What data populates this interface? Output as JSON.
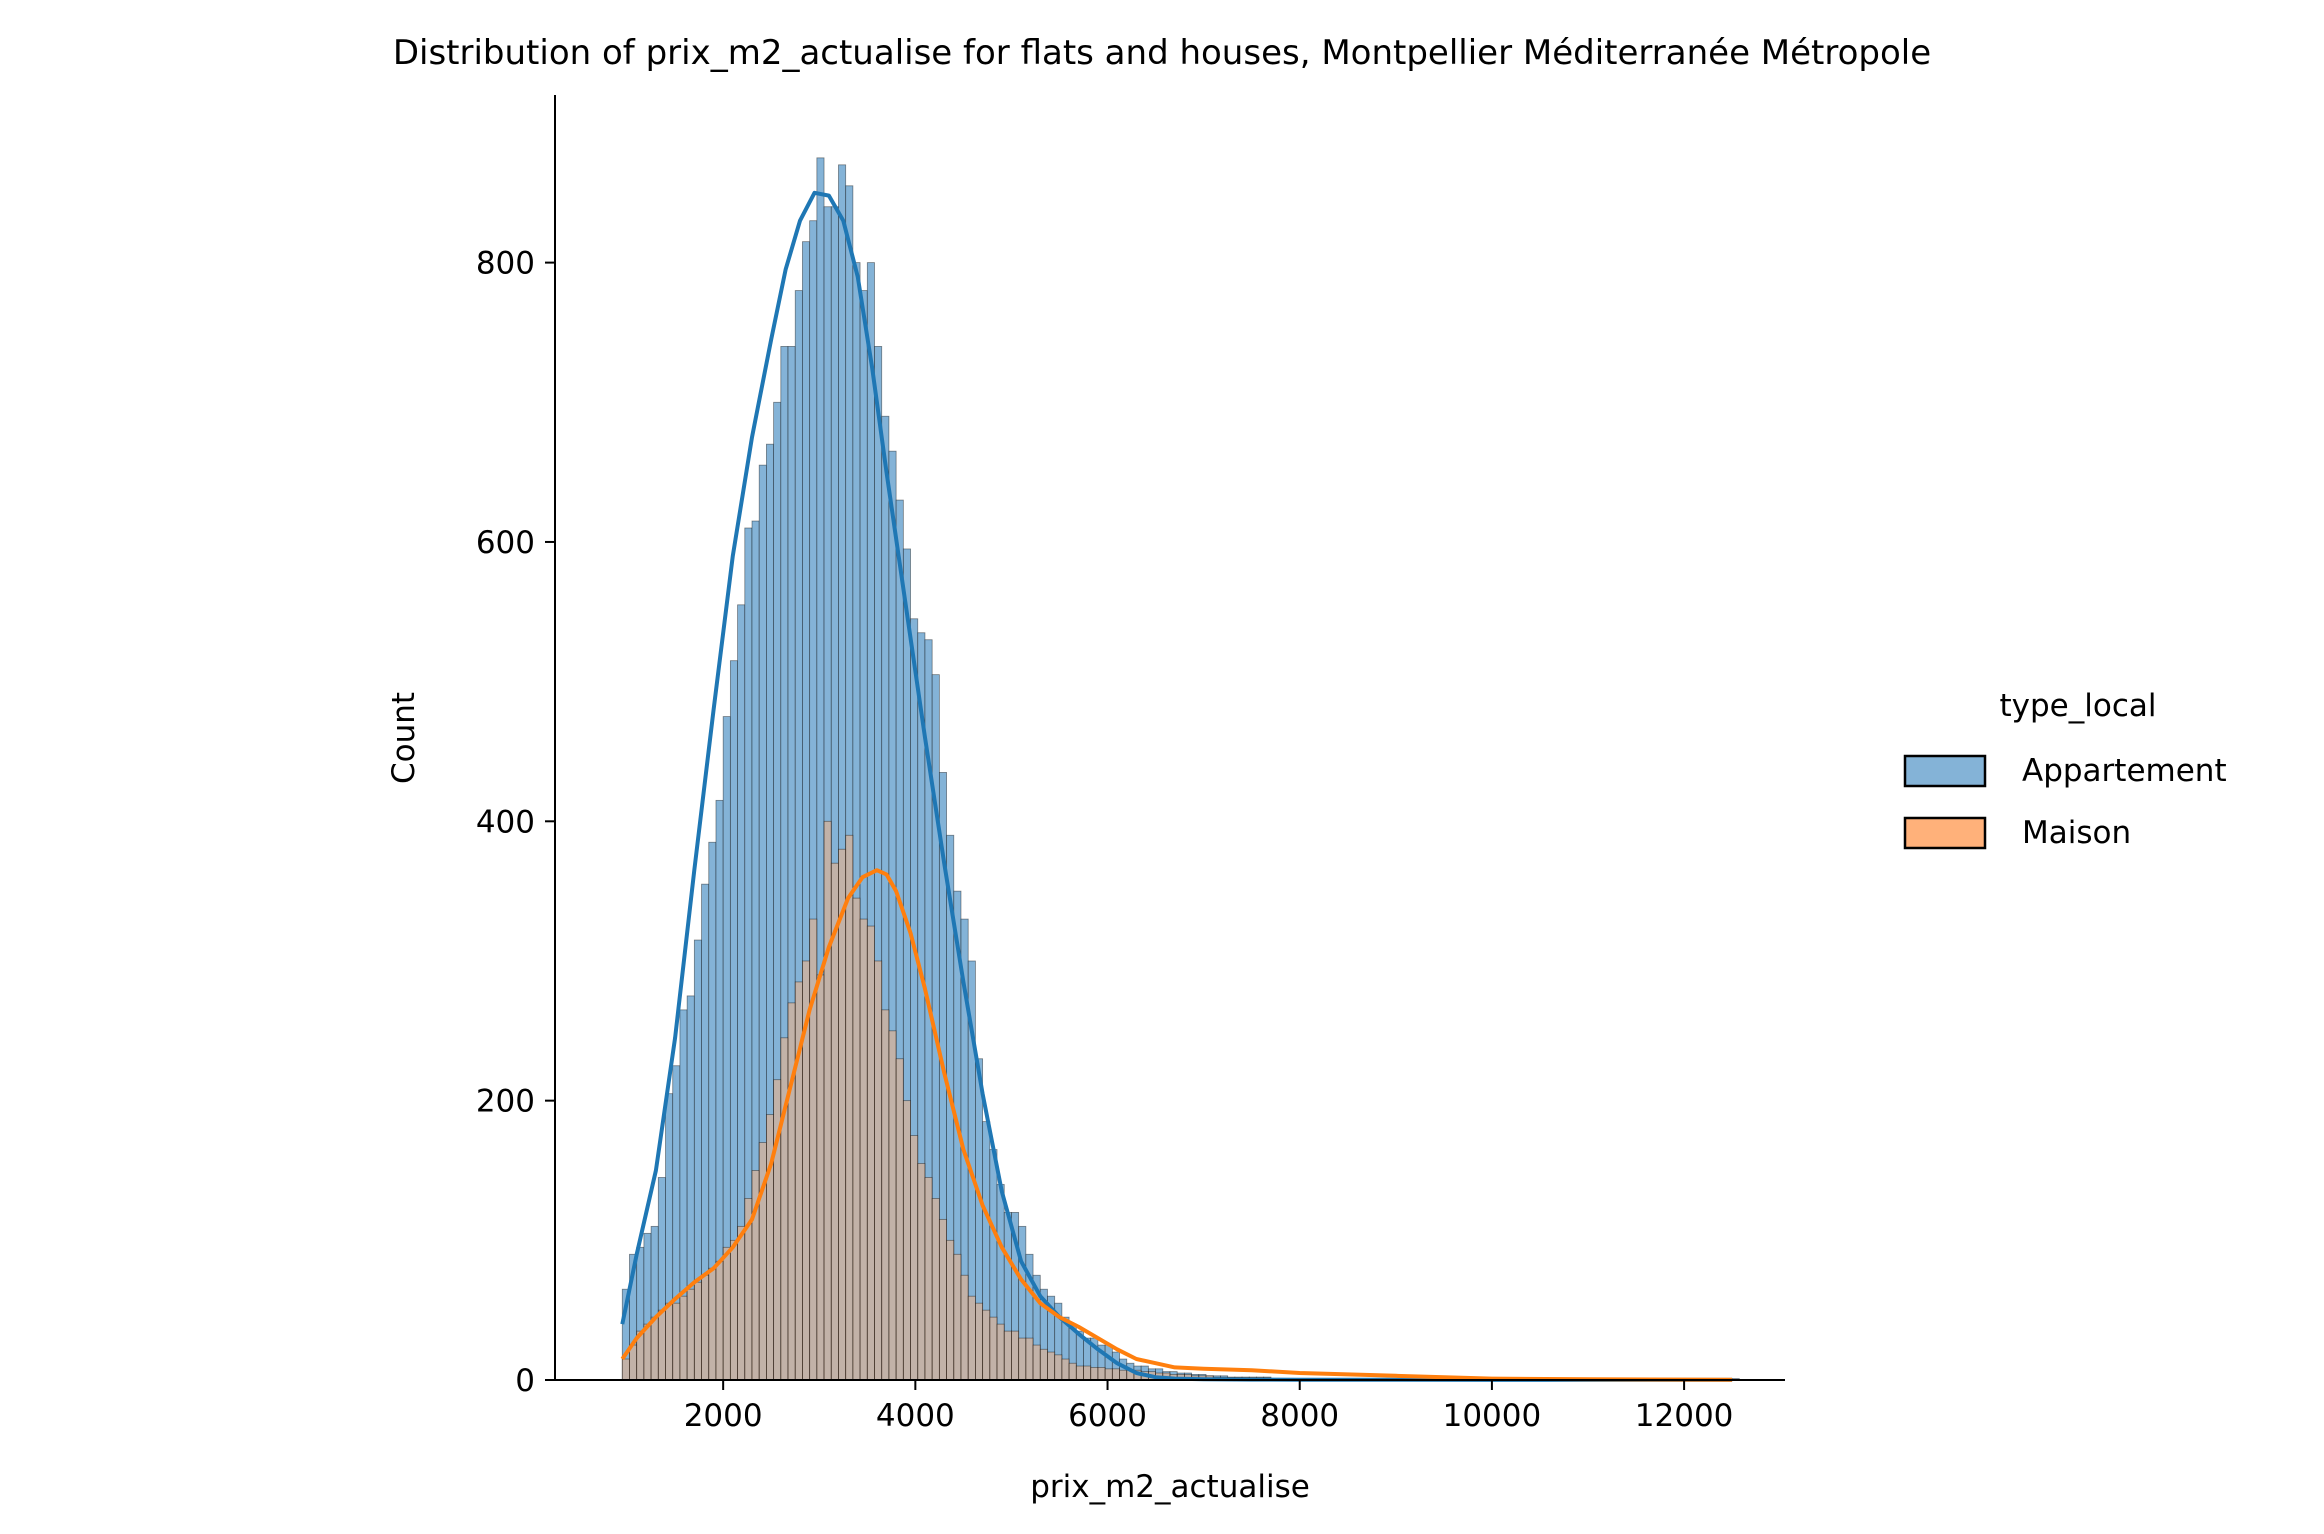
{
  "chart_data": {
    "type": "histogram",
    "title": "Distribution of prix_m2_actualise for flats and houses, Montpellier Méditerranée Métropole",
    "xlabel": "prix_m2_actualise",
    "ylabel": "Count",
    "xlim": [
      250,
      13050
    ],
    "ylim": [
      0,
      920
    ],
    "x_ticks": [
      2000,
      4000,
      6000,
      8000,
      10000,
      12000
    ],
    "y_ticks": [
      0,
      200,
      400,
      600,
      800
    ],
    "bin_start": 950,
    "bin_width": 75,
    "legend": {
      "title": "type_local",
      "position": "outside-right"
    },
    "series": [
      {
        "name": "Appartement",
        "color": "#1f77b4",
        "fill": "#84b3d7",
        "kde_color": "#1f77b4",
        "counts": [
          65,
          90,
          95,
          105,
          110,
          145,
          205,
          225,
          265,
          275,
          315,
          355,
          385,
          415,
          475,
          515,
          555,
          610,
          615,
          655,
          670,
          700,
          740,
          740,
          780,
          815,
          830,
          875,
          840,
          840,
          870,
          855,
          800,
          780,
          800,
          740,
          690,
          665,
          630,
          595,
          545,
          535,
          530,
          505,
          435,
          390,
          350,
          330,
          300,
          230,
          185,
          165,
          140,
          120,
          120,
          110,
          90,
          75,
          65,
          60,
          55,
          45,
          40,
          35,
          30,
          30,
          25,
          25,
          20,
          15,
          12,
          10,
          10,
          8,
          8,
          6,
          6,
          5,
          5,
          4,
          4,
          3,
          3,
          3,
          2,
          2,
          2,
          2,
          2,
          2,
          1,
          1,
          1,
          1,
          1,
          1,
          1,
          1,
          1,
          1,
          1,
          1,
          1,
          1,
          1,
          1,
          1,
          1,
          1,
          1,
          1,
          1,
          1,
          1,
          1,
          1,
          1,
          1,
          1,
          1,
          1,
          1,
          1,
          1,
          1,
          1,
          1,
          1,
          1,
          1,
          1,
          1,
          1,
          1,
          1,
          1,
          1,
          1,
          1,
          1,
          1,
          1,
          1,
          1,
          1,
          1,
          1,
          1,
          1,
          1,
          1,
          1,
          1,
          1,
          1
        ],
        "kde_x": [
          950,
          1100,
          1300,
          1500,
          1700,
          1900,
          2100,
          2300,
          2500,
          2650,
          2800,
          2950,
          3100,
          3250,
          3400,
          3550,
          3700,
          3900,
          4100,
          4300,
          4500,
          4700,
          4900,
          5100,
          5300,
          5500,
          5700,
          5900,
          6100,
          6300,
          6500,
          6700,
          7000,
          7500,
          8000,
          9000,
          10000,
          11000,
          12000,
          12500
        ],
        "kde_y": [
          40,
          90,
          150,
          245,
          365,
          480,
          590,
          675,
          745,
          795,
          830,
          850,
          848,
          830,
          790,
          725,
          650,
          555,
          460,
          370,
          285,
          205,
          135,
          85,
          60,
          45,
          33,
          22,
          12,
          5,
          2,
          1,
          0.5,
          0.3,
          0.2,
          0.2,
          0.1,
          0.1,
          0.1,
          0.1
        ]
      },
      {
        "name": "Maison",
        "color": "#ff7f0e",
        "fill": "#ffb17a",
        "kde_color": "#ff7f0e",
        "counts": [
          15,
          25,
          35,
          40,
          45,
          50,
          55,
          55,
          60,
          65,
          70,
          75,
          80,
          85,
          95,
          100,
          110,
          130,
          150,
          170,
          190,
          215,
          245,
          270,
          285,
          300,
          330,
          290,
          400,
          370,
          380,
          390,
          345,
          330,
          325,
          300,
          265,
          250,
          230,
          200,
          175,
          155,
          145,
          130,
          115,
          100,
          90,
          75,
          60,
          55,
          50,
          45,
          40,
          35,
          35,
          30,
          30,
          25,
          22,
          20,
          18,
          15,
          12,
          10,
          10,
          9,
          9,
          8,
          8,
          7,
          7,
          7,
          6,
          6,
          5,
          5,
          4,
          4,
          4,
          3,
          3,
          3,
          2,
          2,
          2,
          2,
          2,
          2,
          2,
          2,
          1,
          1,
          1,
          1,
          1,
          1,
          1,
          1,
          1,
          1,
          1,
          1,
          1,
          1,
          1,
          1,
          0,
          0,
          0,
          0,
          0,
          0,
          0,
          0,
          0,
          0,
          0,
          0,
          0,
          0,
          0,
          0,
          0,
          0,
          0,
          0,
          0,
          0,
          0,
          0,
          0,
          0,
          0,
          0,
          0,
          0,
          0,
          0,
          0,
          0,
          0,
          0,
          0,
          0,
          0,
          0,
          0,
          0,
          0,
          0,
          0,
          0,
          0,
          0,
          0
        ],
        "kde_x": [
          950,
          1100,
          1300,
          1500,
          1700,
          1900,
          2100,
          2300,
          2500,
          2700,
          2900,
          3100,
          3300,
          3450,
          3600,
          3700,
          3800,
          3950,
          4100,
          4300,
          4500,
          4700,
          4900,
          5100,
          5300,
          5500,
          5700,
          5900,
          6100,
          6300,
          6500,
          6700,
          7000,
          7500,
          8000,
          8500,
          9000,
          10000,
          11000,
          12500
        ],
        "kde_y": [
          15,
          30,
          45,
          58,
          70,
          80,
          95,
          115,
          155,
          210,
          265,
          310,
          345,
          360,
          365,
          362,
          350,
          320,
          280,
          220,
          165,
          125,
          95,
          72,
          55,
          45,
          38,
          30,
          22,
          15,
          12,
          9,
          8,
          7,
          5,
          4,
          3,
          1,
          0.5,
          0.2
        ]
      }
    ]
  }
}
